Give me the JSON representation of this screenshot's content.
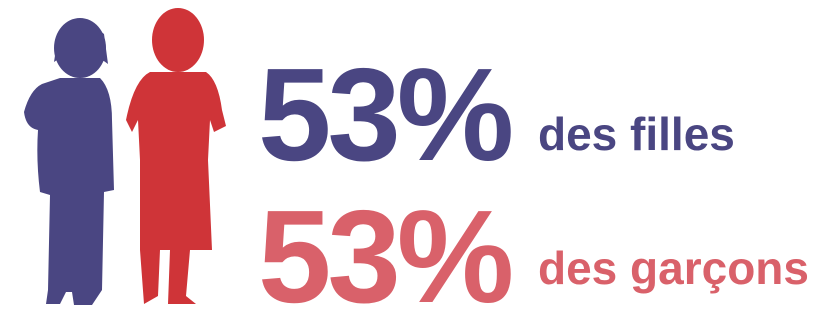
{
  "stats": [
    {
      "value": "53%",
      "label": "des filles"
    },
    {
      "value": "53%",
      "label": "des garçons"
    }
  ]
}
